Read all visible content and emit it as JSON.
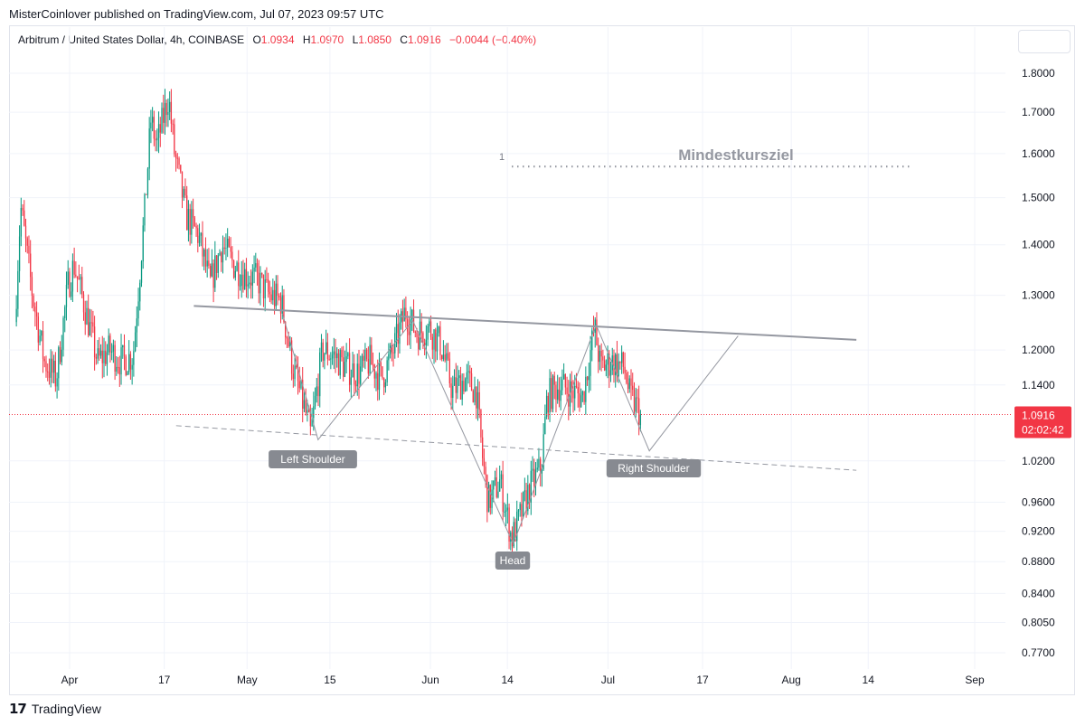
{
  "header": {
    "published_by": "MisterCoinlover published on TradingView.com, Jul 07, 2023 09:57 UTC"
  },
  "legend": {
    "symbol": "Arbitrum / United States Dollar, 4h, COINBASE",
    "o_label": "O",
    "o_value": "1.0934",
    "h_label": "H",
    "h_value": "1.0970",
    "l_label": "L",
    "l_value": "1.0850",
    "c_label": "C",
    "c_value": "1.0916",
    "change": "−0.0044 (−0.40%)"
  },
  "price_tag": {
    "price": "1.0916",
    "countdown": "02:02:42",
    "color": "#f23645"
  },
  "footer": {
    "brand": "TradingView"
  },
  "colors": {
    "up": "#089981",
    "down": "#f23645",
    "pattern": "#9598a1",
    "label_bg": "#878a91"
  },
  "chart_data": {
    "type": "candlestick",
    "title": "Arbitrum / United States Dollar, 4h, COINBASE",
    "y_scale": "log",
    "yticks": [
      1.8,
      1.7,
      1.6,
      1.5,
      1.4,
      1.3,
      1.2,
      1.14,
      1.02,
      0.96,
      0.92,
      0.88,
      0.84,
      0.805,
      0.77
    ],
    "ytick_labels": [
      "1.8000",
      "1.7000",
      "1.6000",
      "1.5000",
      "1.4000",
      "1.3000",
      "1.2000",
      "1.1400",
      "1.0200",
      "0.9600",
      "0.9200",
      "0.8800",
      "0.8400",
      "0.8050",
      "0.7700"
    ],
    "xticks": [
      "2023-04-01",
      "2023-04-17",
      "2023-05-01",
      "2023-05-15",
      "2023-06-01",
      "2023-06-14",
      "2023-07-01",
      "2023-07-17",
      "2023-08-01",
      "2023-08-14",
      "2023-09-01"
    ],
    "xtick_labels": [
      "Apr",
      "17",
      "May",
      "15",
      "Jun",
      "14",
      "Jul",
      "17",
      "Aug",
      "14",
      "Sep"
    ],
    "last_price": 1.0916,
    "price_path": [
      [
        "2023-03-23",
        1.25
      ],
      [
        "2023-03-24",
        1.48
      ],
      [
        "2023-03-26",
        1.3
      ],
      [
        "2023-03-28",
        1.18
      ],
      [
        "2023-03-30",
        1.15
      ],
      [
        "2023-04-01",
        1.32
      ],
      [
        "2023-04-02",
        1.36
      ],
      [
        "2023-04-04",
        1.27
      ],
      [
        "2023-04-06",
        1.18
      ],
      [
        "2023-04-08",
        1.2
      ],
      [
        "2023-04-10",
        1.18
      ],
      [
        "2023-04-12",
        1.19
      ],
      [
        "2023-04-14",
        1.48
      ],
      [
        "2023-04-15",
        1.68
      ],
      [
        "2023-04-16",
        1.62
      ],
      [
        "2023-04-17",
        1.68
      ],
      [
        "2023-04-18",
        1.74
      ],
      [
        "2023-04-19",
        1.6
      ],
      [
        "2023-04-21",
        1.46
      ],
      [
        "2023-04-23",
        1.42
      ],
      [
        "2023-04-25",
        1.32
      ],
      [
        "2023-04-27",
        1.4
      ],
      [
        "2023-04-29",
        1.36
      ],
      [
        "2023-05-01",
        1.34
      ],
      [
        "2023-05-03",
        1.33
      ],
      [
        "2023-05-05",
        1.3
      ],
      [
        "2023-05-07",
        1.29
      ],
      [
        "2023-05-09",
        1.17
      ],
      [
        "2023-05-11",
        1.1
      ],
      [
        "2023-05-12",
        1.06
      ],
      [
        "2023-05-14",
        1.2
      ],
      [
        "2023-05-16",
        1.19
      ],
      [
        "2023-05-18",
        1.17
      ],
      [
        "2023-05-20",
        1.16
      ],
      [
        "2023-05-22",
        1.18
      ],
      [
        "2023-05-24",
        1.15
      ],
      [
        "2023-05-26",
        1.2
      ],
      [
        "2023-05-28",
        1.27
      ],
      [
        "2023-05-30",
        1.23
      ],
      [
        "2023-06-01",
        1.24
      ],
      [
        "2023-06-03",
        1.21
      ],
      [
        "2023-06-05",
        1.13
      ],
      [
        "2023-06-07",
        1.15
      ],
      [
        "2023-06-09",
        1.13
      ],
      [
        "2023-06-10",
        1.03
      ],
      [
        "2023-06-11",
        0.96
      ],
      [
        "2023-06-13",
        0.99
      ],
      [
        "2023-06-15",
        0.91
      ],
      [
        "2023-06-16",
        0.93
      ],
      [
        "2023-06-18",
        0.98
      ],
      [
        "2023-06-20",
        1.01
      ],
      [
        "2023-06-21",
        1.12
      ],
      [
        "2023-06-23",
        1.14
      ],
      [
        "2023-06-25",
        1.13
      ],
      [
        "2023-06-27",
        1.12
      ],
      [
        "2023-06-29",
        1.24
      ],
      [
        "2023-06-30",
        1.17
      ],
      [
        "2023-07-02",
        1.18
      ],
      [
        "2023-07-04",
        1.17
      ],
      [
        "2023-07-05",
        1.12
      ],
      [
        "2023-07-07",
        1.0916
      ]
    ],
    "annotations": {
      "target_number": "1",
      "target_label": "Mindestkursziel",
      "target_price": 1.57,
      "left_shoulder": "Left Shoulder",
      "head": "Head",
      "right_shoulder": "Right Shoulder"
    },
    "pattern_lines": {
      "resistance": [
        [
          "2023-04-22",
          1.28
        ],
        [
          "2023-08-12",
          1.218
        ]
      ],
      "neckline": [
        [
          "2023-04-19",
          1.074
        ],
        [
          "2023-08-12",
          1.006
        ]
      ],
      "zigzag": [
        [
          "2023-05-07",
          1.265
        ],
        [
          "2023-05-13",
          1.052
        ],
        [
          "2023-05-29",
          1.253
        ],
        [
          "2023-06-15",
          0.903
        ],
        [
          "2023-06-29",
          1.245
        ],
        [
          "2023-07-08",
          1.035
        ],
        [
          "2023-07-23",
          1.225
        ]
      ]
    }
  }
}
